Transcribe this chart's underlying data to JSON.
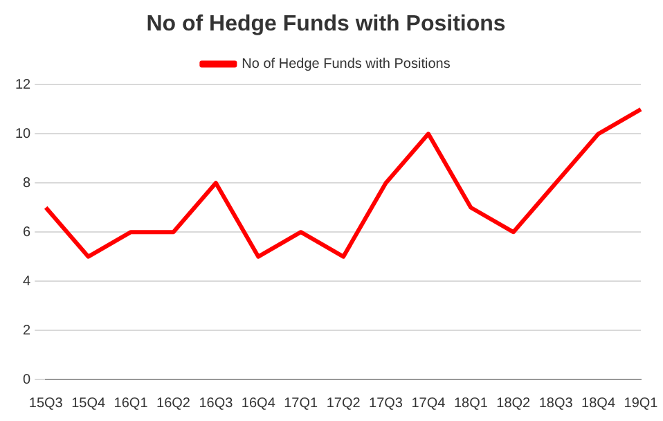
{
  "chart_data": {
    "type": "line",
    "title": "No of Hedge Funds with Positions",
    "categories": [
      "15Q3",
      "15Q4",
      "16Q1",
      "16Q2",
      "16Q3",
      "16Q4",
      "17Q1",
      "17Q2",
      "17Q3",
      "17Q4",
      "18Q1",
      "18Q2",
      "18Q3",
      "18Q4",
      "19Q1"
    ],
    "series": [
      {
        "name": "No of Hedge Funds with Positions",
        "color": "#ff0000",
        "values": [
          7,
          5,
          6,
          6,
          8,
          5,
          6,
          5,
          8,
          10,
          7,
          6,
          8,
          10,
          11
        ]
      }
    ],
    "ylim": [
      0,
      12
    ],
    "yticks": [
      0,
      2,
      4,
      6,
      8,
      10,
      12
    ],
    "grid": "y",
    "legend": "top",
    "marker": "none",
    "line_style": "solid"
  }
}
